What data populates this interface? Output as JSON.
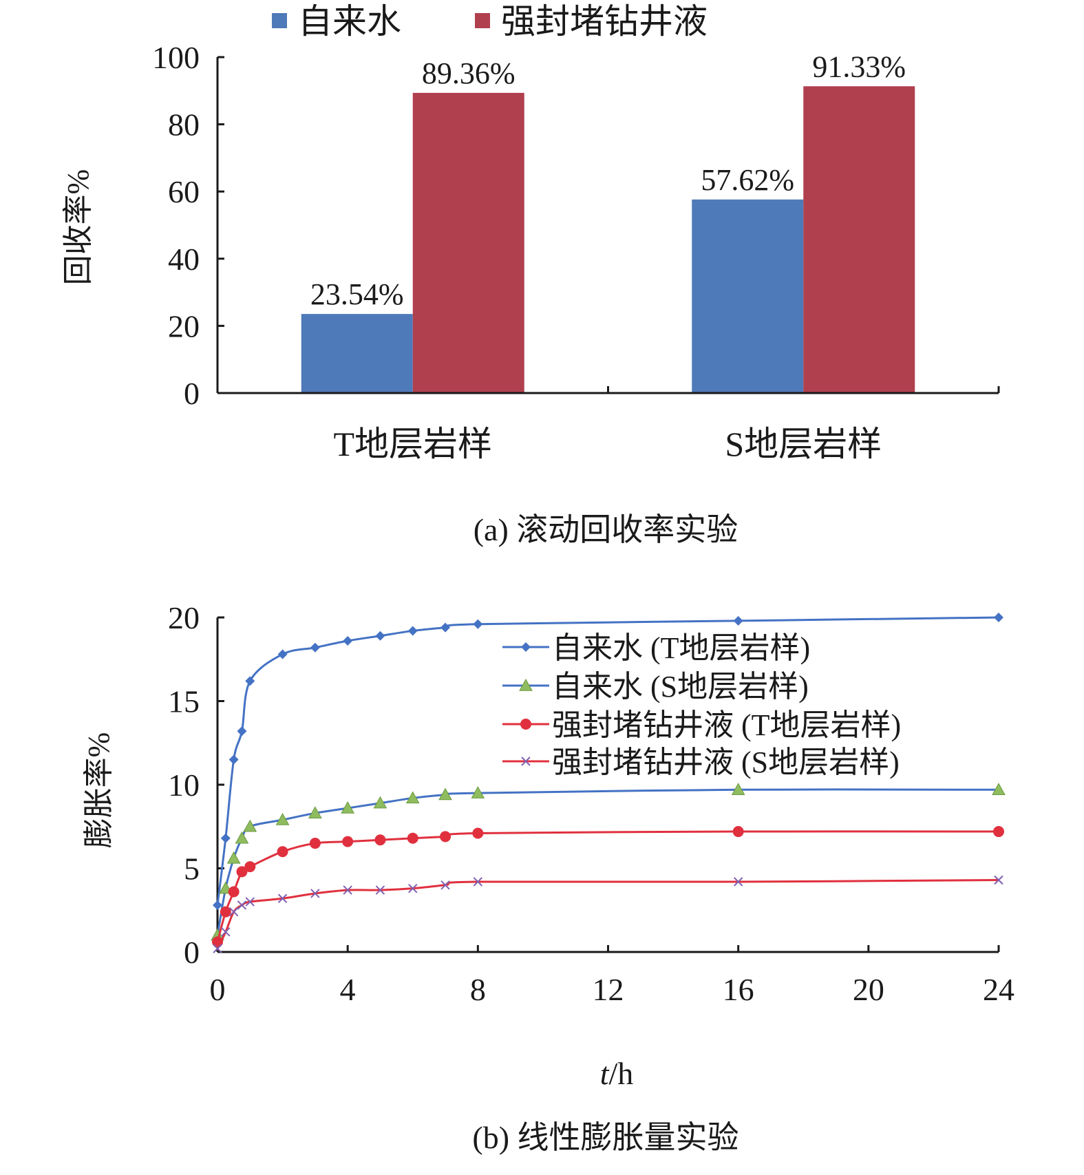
{
  "chart_data": [
    {
      "type": "bar",
      "caption": "(a) 滚动回收率实验",
      "ylabel": "回收率%",
      "xlabel": "",
      "ylim": [
        0,
        100
      ],
      "yticks": [
        0,
        20,
        40,
        60,
        80,
        100
      ],
      "categories": [
        "T地层岩样",
        "S地层岩样"
      ],
      "legend_position": "top-center",
      "grid": false,
      "series": [
        {
          "name": "自来水",
          "color": "#4f7ab9",
          "values": [
            23.54,
            57.62
          ],
          "labels": [
            "23.54%",
            "57.62%"
          ]
        },
        {
          "name": "强封堵钻井液",
          "color": "#b1404f",
          "values": [
            89.36,
            91.33
          ],
          "labels": [
            "89.36%",
            "91.33%"
          ]
        }
      ]
    },
    {
      "type": "line",
      "caption": "(b) 线性膨胀量实验",
      "ylabel": "膨胀率%",
      "xlabel_italic": "t",
      "xlabel_rest": "/h",
      "xlim": [
        0,
        24
      ],
      "ylim": [
        0,
        20
      ],
      "xticks": [
        0,
        4,
        8,
        12,
        16,
        20,
        24
      ],
      "yticks": [
        0,
        5,
        10,
        15,
        20
      ],
      "legend_position": "top-right",
      "grid": false,
      "series": [
        {
          "name": "自来水 (T地层岩样)",
          "color": "#4472c4",
          "marker": "diamond",
          "x": [
            0,
            0.25,
            0.5,
            0.75,
            1,
            2,
            3,
            4,
            5,
            6,
            7,
            8,
            16,
            24
          ],
          "y": [
            2.8,
            6.8,
            11.5,
            13.2,
            16.2,
            17.8,
            18.2,
            18.6,
            18.9,
            19.2,
            19.4,
            19.6,
            19.8,
            20.0
          ]
        },
        {
          "name": "自来水 (S地层岩样)",
          "color": "#4472c4",
          "marker": "triangle",
          "marker_color": "#8fbc5f",
          "x": [
            0,
            0.25,
            0.5,
            0.75,
            1,
            2,
            3,
            4,
            5,
            6,
            7,
            8,
            16,
            24
          ],
          "y": [
            1.0,
            3.8,
            5.6,
            6.8,
            7.5,
            7.9,
            8.3,
            8.6,
            8.9,
            9.2,
            9.4,
            9.5,
            9.7,
            9.7
          ]
        },
        {
          "name": "强封堵钻井液 (T地层岩样)",
          "color": "#e0303e",
          "marker": "circle",
          "x": [
            0,
            0.25,
            0.5,
            0.75,
            1,
            2,
            3,
            4,
            5,
            6,
            7,
            8,
            16,
            24
          ],
          "y": [
            0.6,
            2.4,
            3.6,
            4.8,
            5.1,
            6.0,
            6.5,
            6.6,
            6.7,
            6.8,
            6.9,
            7.1,
            7.2,
            7.2
          ]
        },
        {
          "name": "强封堵钻井液 (S地层岩样)",
          "color": "#e0303e",
          "marker": "cross",
          "marker_color": "#8060b0",
          "x": [
            0,
            0.25,
            0.5,
            0.75,
            1,
            2,
            3,
            4,
            5,
            6,
            7,
            8,
            16,
            24
          ],
          "y": [
            0.2,
            1.2,
            2.4,
            2.8,
            3.0,
            3.2,
            3.5,
            3.7,
            3.7,
            3.8,
            4.0,
            4.2,
            4.2,
            4.3
          ]
        }
      ]
    }
  ]
}
